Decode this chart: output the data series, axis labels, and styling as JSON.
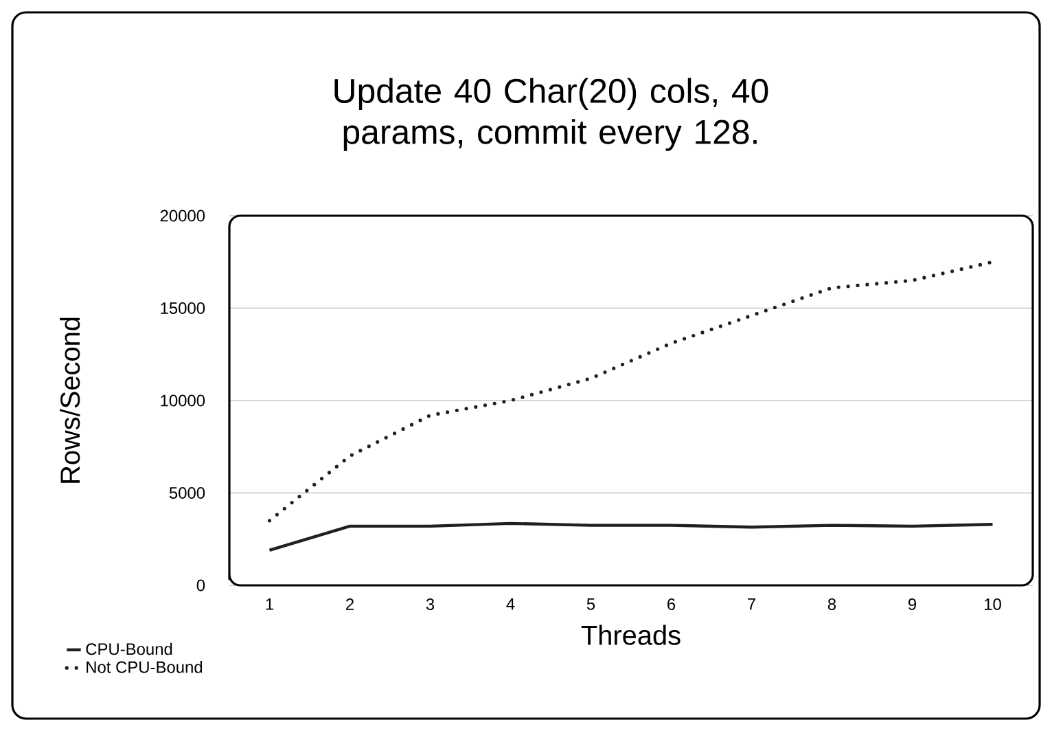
{
  "chart_data": {
    "type": "line",
    "title": "Update 40 Char(20) cols, 40 params, commit every 128.",
    "xlabel": "Threads",
    "ylabel": "Rows/Second",
    "categories": [
      "1",
      "2",
      "3",
      "4",
      "5",
      "6",
      "7",
      "8",
      "9",
      "10"
    ],
    "series": [
      {
        "name": "CPU-Bound",
        "color": "#231f20",
        "line_style": "solid",
        "values": [
          1900,
          3200,
          3200,
          3350,
          3250,
          3250,
          3150,
          3250,
          3200,
          3300
        ]
      },
      {
        "name": "Not CPU-Bound",
        "color": "#231f20",
        "line_style": "dotted",
        "values": [
          3500,
          7000,
          9200,
          10000,
          11200,
          13100,
          14600,
          16100,
          16500,
          17500
        ]
      }
    ],
    "ylim": [
      0,
      20000
    ],
    "yticks": [
      0,
      5000,
      10000,
      15000,
      20000
    ],
    "grid": "y",
    "legend": "bottom left",
    "marker": "none"
  }
}
